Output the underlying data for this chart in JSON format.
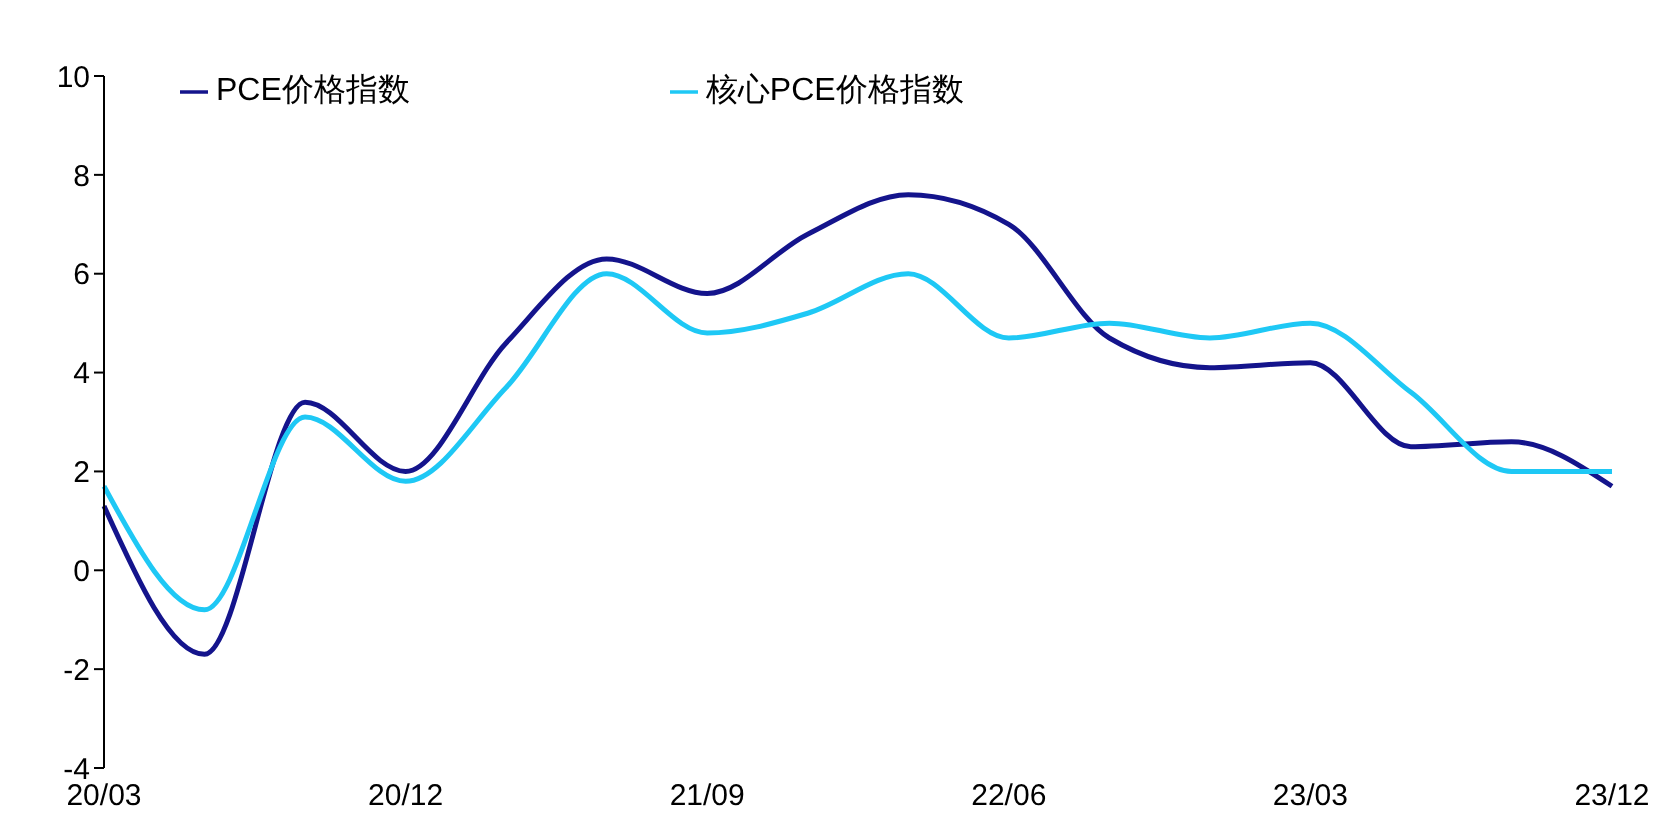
{
  "chart_data": {
    "type": "line",
    "categories": [
      "20/03",
      null,
      null,
      "20/12",
      null,
      null,
      "21/09",
      null,
      null,
      "22/06",
      null,
      null,
      "23/03",
      null,
      null,
      "23/12"
    ],
    "series": [
      {
        "name": "PCE价格指数",
        "color": "#14148c",
        "values": [
          1.3,
          -1.7,
          3.4,
          2.0,
          4.6,
          6.3,
          5.6,
          6.8,
          7.6,
          7.0,
          4.7,
          4.1,
          4.2,
          2.5,
          2.6,
          1.7
        ]
      },
      {
        "name": "核心PCE价格指数",
        "color": "#1ec8f5",
        "values": [
          1.7,
          -0.8,
          3.1,
          1.8,
          3.7,
          6.0,
          4.8,
          5.2,
          6.0,
          4.7,
          5.0,
          4.7,
          5.0,
          3.6,
          2.0,
          2.0
        ]
      }
    ],
    "ylim": [
      -4,
      10
    ],
    "yticks": [
      -4,
      -2,
      0,
      2,
      4,
      6,
      8,
      10
    ],
    "grid": false,
    "legend": "top left",
    "marker": "none",
    "line_style": "solid"
  }
}
